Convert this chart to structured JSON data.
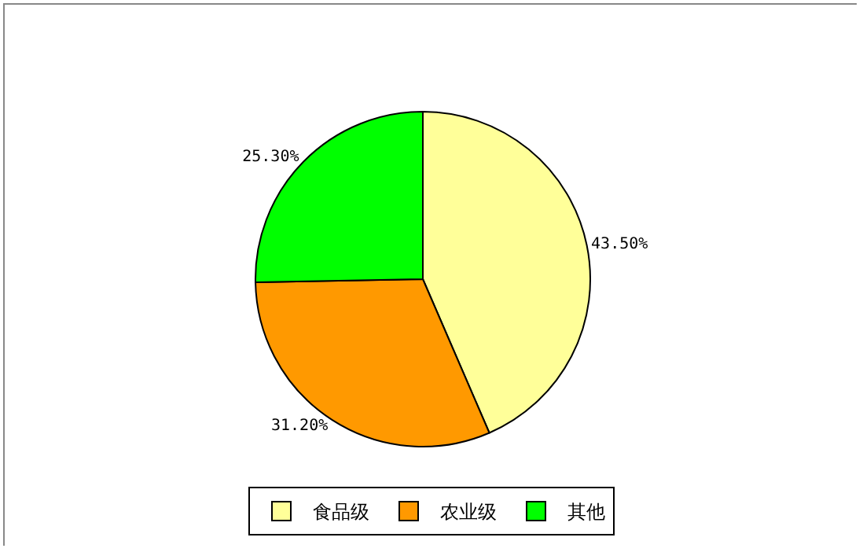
{
  "chart_data": {
    "type": "pie",
    "categories": [
      "食品级",
      "农业级",
      "其他"
    ],
    "values": [
      43.5,
      31.2,
      25.3
    ],
    "colors": [
      "#ffff99",
      "#ff9900",
      "#00ff00"
    ],
    "value_labels": [
      "43.50%",
      "31.20%",
      "25.30%"
    ],
    "legend": "bottom"
  }
}
